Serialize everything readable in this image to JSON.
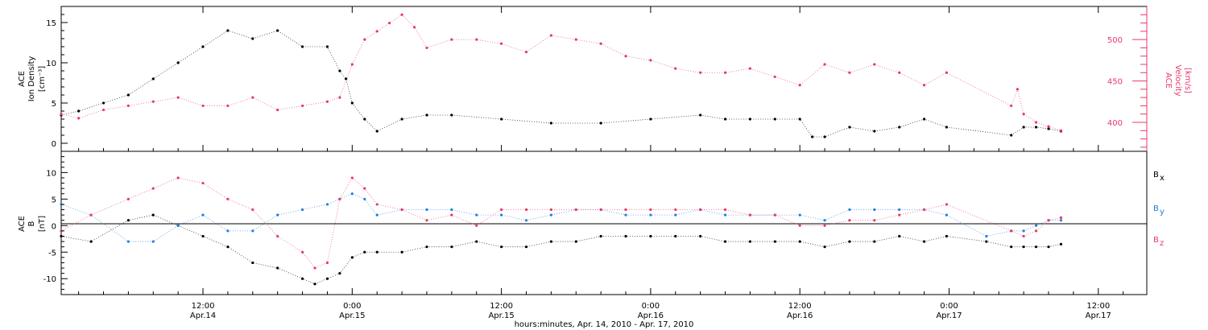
{
  "xaxis": {
    "title": "hours:minutes, Apr. 14, 2010 - Apr. 17, 2010",
    "range_hours": [
      -5.4,
      81.9
    ],
    "ticks": [
      {
        "h": 6,
        "t1": "12:00",
        "t2": "Apr.14"
      },
      {
        "h": 18,
        "t1": "0:00",
        "t2": "Apr.15"
      },
      {
        "h": 30,
        "t1": "12:00",
        "t2": "Apr.15"
      },
      {
        "h": 42,
        "t1": "0:00",
        "t2": "Apr.16"
      },
      {
        "h": 54,
        "t1": "12:00",
        "t2": "Apr.16"
      },
      {
        "h": 66,
        "t1": "0:00",
        "t2": "Apr.17"
      },
      {
        "h": 78,
        "t1": "12:00",
        "t2": "Apr.17"
      }
    ]
  },
  "top_panel": {
    "left_label": [
      "ACE",
      "Ion Density",
      "[cm⁻³]"
    ],
    "right_label": [
      "ACE",
      "Velocity",
      "[km/s]"
    ],
    "left_ticks": [
      "0",
      "5",
      "10",
      "15"
    ],
    "right_ticks": [
      "400",
      "450",
      "500"
    ],
    "density_color": "#000000",
    "velocity_color": "#e8386a"
  },
  "bottom_panel": {
    "left_label": [
      "ACE",
      "B",
      "[nT]"
    ],
    "left_ticks": [
      "-10",
      "-5",
      "0",
      "5",
      "10"
    ],
    "legend": [
      {
        "name": "Bx",
        "base": "B",
        "sub": "x",
        "color": "#000000"
      },
      {
        "name": "By",
        "base": "B",
        "sub": "y",
        "color": "#1e7fe0"
      },
      {
        "name": "Bz",
        "base": "B",
        "sub": "z",
        "color": "#e8386a"
      }
    ]
  },
  "chart_data": [
    {
      "type": "scatter",
      "panel": "top",
      "ylim_left": [
        -1,
        17
      ],
      "ylim_right": [
        365,
        540
      ],
      "series": [
        {
          "name": "Ion Density",
          "axis": "left",
          "color": "#000000",
          "x": [
            -5.4,
            -4,
            -2,
            0,
            2,
            4,
            6,
            8,
            10,
            12,
            14,
            16,
            17,
            17.5,
            18,
            19,
            20,
            22,
            24,
            26,
            30,
            34,
            38,
            42,
            46,
            48,
            50,
            52,
            54,
            55,
            56,
            58,
            60,
            62,
            64,
            65.8,
            71,
            72,
            73,
            74,
            75
          ],
          "y": [
            3.5,
            4,
            5,
            6,
            8,
            10,
            12,
            14,
            13,
            14,
            12,
            12,
            9,
            8,
            5,
            3,
            1.5,
            3,
            3.5,
            3.5,
            3,
            2.5,
            2.5,
            3,
            3.5,
            3,
            3,
            3,
            3,
            0.8,
            0.8,
            2,
            1.5,
            2,
            3,
            2,
            1,
            2,
            2,
            1.8,
            1.5
          ]
        },
        {
          "name": "Velocity",
          "axis": "right",
          "color": "#e8386a",
          "x": [
            -5.4,
            -4,
            -2,
            0,
            2,
            4,
            6,
            8,
            10,
            12,
            14,
            16,
            17,
            18,
            19,
            20,
            21,
            22,
            23,
            24,
            26,
            28,
            30,
            32,
            34,
            36,
            38,
            40,
            42,
            44,
            46,
            48,
            50,
            52,
            54,
            56,
            58,
            60,
            62,
            64,
            65.8,
            71,
            71.5,
            72,
            73,
            74,
            75
          ],
          "y": [
            410,
            405,
            415,
            420,
            425,
            430,
            420,
            420,
            430,
            415,
            420,
            425,
            430,
            470,
            500,
            510,
            520,
            530,
            515,
            490,
            500,
            500,
            495,
            485,
            505,
            500,
            495,
            480,
            475,
            465,
            460,
            460,
            465,
            455,
            445,
            470,
            460,
            470,
            460,
            445,
            460,
            420,
            440,
            410,
            400,
            395,
            390
          ]
        }
      ]
    },
    {
      "type": "scatter",
      "panel": "bottom",
      "ylim": [
        -13,
        14
      ],
      "series": [
        {
          "name": "Bx",
          "color": "#000000",
          "x": [
            -5.4,
            -3,
            0,
            2,
            4,
            6,
            8,
            10,
            12,
            14,
            15,
            16,
            17,
            18,
            19,
            20,
            22,
            24,
            26,
            28,
            30,
            32,
            34,
            36,
            38,
            40,
            42,
            44,
            46,
            48,
            50,
            52,
            54,
            56,
            58,
            60,
            62,
            64,
            65.8,
            69,
            71,
            72,
            73,
            74,
            75
          ],
          "y": [
            -2,
            -3,
            1,
            2,
            0,
            -2,
            -4,
            -7,
            -8,
            -10,
            -11,
            -10,
            -9,
            -6,
            -5,
            -5,
            -5,
            -4,
            -4,
            -3,
            -4,
            -4,
            -3,
            -3,
            -2,
            -2,
            -2,
            -2,
            -2,
            -3,
            -3,
            -3,
            -3,
            -4,
            -3,
            -3,
            -2,
            -3,
            -2,
            -3,
            -4,
            -4,
            -4,
            -4,
            -3.5
          ]
        },
        {
          "name": "By",
          "color": "#1e7fe0",
          "x": [
            -5.4,
            -3,
            0,
            2,
            4,
            6,
            8,
            10,
            12,
            14,
            16,
            17,
            18,
            19,
            20,
            22,
            24,
            26,
            28,
            30,
            32,
            34,
            36,
            38,
            40,
            42,
            44,
            46,
            48,
            50,
            52,
            54,
            56,
            58,
            60,
            62,
            64,
            65.8,
            69,
            71,
            72,
            73,
            74,
            75
          ],
          "y": [
            4,
            2,
            -3,
            -3,
            0,
            2,
            -1,
            -1,
            2,
            3,
            4,
            5,
            6,
            5,
            2,
            3,
            3,
            3,
            2,
            2,
            1,
            2,
            3,
            3,
            2,
            2,
            2,
            3,
            2,
            2,
            2,
            2,
            1,
            3,
            3,
            3,
            3,
            2,
            -2,
            -1,
            -1,
            0,
            1,
            1
          ]
        },
        {
          "name": "Bz",
          "color": "#e8386a",
          "x": [
            -5.4,
            -3,
            0,
            2,
            4,
            6,
            8,
            10,
            12,
            14,
            15,
            16,
            17,
            18,
            19,
            20,
            22,
            24,
            26,
            28,
            30,
            32,
            34,
            36,
            38,
            40,
            42,
            44,
            46,
            48,
            50,
            52,
            54,
            56,
            58,
            60,
            62,
            64,
            65.8,
            71,
            72,
            73,
            74,
            75
          ],
          "y": [
            -1,
            2,
            5,
            7,
            9,
            8,
            5,
            3,
            -2,
            -5,
            -8,
            -7,
            5,
            9,
            7,
            4,
            3,
            1,
            2,
            0,
            3,
            3,
            3,
            3,
            3,
            3,
            3,
            3,
            3,
            3,
            2,
            2,
            0,
            0,
            1,
            1,
            2,
            3,
            4,
            -1,
            -2,
            -1,
            1,
            1.5
          ]
        }
      ]
    }
  ]
}
